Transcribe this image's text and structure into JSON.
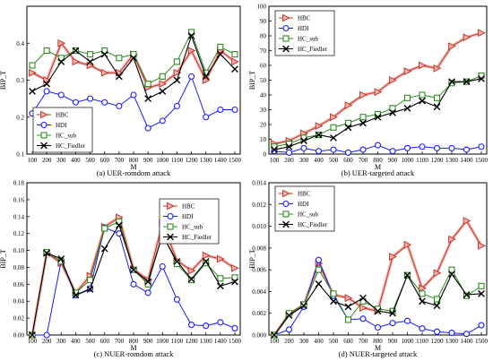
{
  "chart_data": [
    {
      "type": "line",
      "caption": "(a) UER-romdom attack",
      "xlabel": "M",
      "ylabel": "BIP_T",
      "x": [
        100,
        200,
        300,
        400,
        500,
        600,
        700,
        800,
        900,
        1000,
        1100,
        1200,
        1300,
        1400,
        1500
      ],
      "xticks": [
        "100",
        "200",
        "300",
        "400",
        "500",
        "600",
        "700",
        "800",
        "900",
        "1000",
        "1100",
        "1200",
        "1300",
        "1400",
        "1500"
      ],
      "ylim": [
        0.1,
        0.5
      ],
      "yticks": [
        0.1,
        0.2,
        0.3,
        0.4
      ],
      "ytick_labels": [
        "0.1",
        "0.2",
        "0.3",
        "0.4"
      ],
      "legend": "bottom-left",
      "series": [
        {
          "name": "HBC",
          "values": [
            0.32,
            0.3,
            0.4,
            0.35,
            0.34,
            0.32,
            0.32,
            0.37,
            0.28,
            0.29,
            0.32,
            0.38,
            0.3,
            0.38,
            0.35
          ]
        },
        {
          "name": "HDI",
          "values": [
            0.21,
            0.27,
            0.26,
            0.24,
            0.25,
            0.24,
            0.23,
            0.26,
            0.17,
            0.19,
            0.23,
            0.31,
            0.2,
            0.22,
            0.22
          ]
        },
        {
          "name": "HC_sub",
          "values": [
            0.34,
            0.38,
            0.36,
            0.38,
            0.37,
            0.38,
            0.36,
            0.37,
            0.29,
            0.31,
            0.35,
            0.43,
            0.32,
            0.39,
            0.37
          ]
        },
        {
          "name": "HC_Fiedler",
          "values": [
            0.27,
            0.29,
            0.35,
            0.38,
            0.35,
            0.37,
            0.31,
            0.36,
            0.25,
            0.27,
            0.3,
            0.42,
            0.31,
            0.37,
            0.33
          ]
        }
      ]
    },
    {
      "type": "line",
      "caption": "(b) UER-targeted attack",
      "xlabel": "M",
      "ylabel": "BIP_T",
      "x": [
        100,
        200,
        300,
        400,
        500,
        600,
        700,
        800,
        900,
        1000,
        1100,
        1200,
        1300,
        1400,
        1500
      ],
      "xticks": [
        "100",
        "200",
        "300",
        "400",
        "500",
        "600",
        "700",
        "800",
        "900",
        "1000",
        "1100",
        "1200",
        "1300",
        "1400",
        "1500"
      ],
      "ylim": [
        0,
        100
      ],
      "yticks": [
        0,
        10,
        20,
        30,
        40,
        50,
        60,
        70,
        80,
        90,
        100
      ],
      "ytick_labels": [
        "0",
        "10",
        "20",
        "30",
        "40",
        "50",
        "60",
        "70",
        "80",
        "90",
        "100"
      ],
      "legend": "top-left",
      "series": [
        {
          "name": "HBC",
          "values": [
            7,
            9,
            14,
            19,
            25,
            33,
            40,
            42,
            50,
            56,
            60,
            58,
            73,
            79,
            82
          ]
        },
        {
          "name": "HDI",
          "values": [
            2,
            1,
            4,
            2,
            3,
            1,
            3,
            6,
            2,
            4,
            5,
            4,
            4,
            3,
            5
          ]
        },
        {
          "name": "HC_sub",
          "values": [
            5,
            7,
            11,
            13,
            18,
            21,
            25,
            27,
            31,
            38,
            40,
            38,
            48,
            49,
            53
          ]
        },
        {
          "name": "HC_Fiedler",
          "values": [
            3,
            5,
            9,
            13,
            11,
            18,
            21,
            25,
            28,
            31,
            36,
            32,
            49,
            49,
            51
          ]
        }
      ]
    },
    {
      "type": "line",
      "caption": "(c) NUER-romdom attack",
      "xlabel": "M",
      "ylabel": "BIP_T",
      "x": [
        100,
        200,
        300,
        400,
        500,
        600,
        700,
        800,
        900,
        1000,
        1100,
        1200,
        1300,
        1400,
        1500
      ],
      "xticks": [
        "100",
        "200",
        "300",
        "400",
        "500",
        "600",
        "700",
        "800",
        "900",
        "1000",
        "1100",
        "1200",
        "1300",
        "1400",
        "1500"
      ],
      "ylim": [
        0,
        0.18
      ],
      "yticks": [
        0,
        0.02,
        0.04,
        0.06,
        0.08,
        0.1,
        0.12,
        0.14,
        0.16,
        0.18
      ],
      "ytick_labels": [
        "0.00",
        "0.02",
        "0.04",
        "0.06",
        "0.08",
        "0.10",
        "0.12",
        "0.14",
        "0.16",
        "0.18"
      ],
      "legend": "right",
      "series": [
        {
          "name": "HBC",
          "values": [
            0.0,
            0.097,
            0.085,
            0.05,
            0.07,
            0.128,
            0.139,
            0.078,
            0.065,
            0.132,
            0.088,
            0.076,
            0.094,
            0.09,
            0.079
          ]
        },
        {
          "name": "HDI",
          "values": [
            0.0,
            0.0,
            0.088,
            0.047,
            0.055,
            0.127,
            0.12,
            0.06,
            0.05,
            0.081,
            0.042,
            0.012,
            0.011,
            0.015,
            0.008
          ]
        },
        {
          "name": "HC_sub",
          "values": [
            0.0,
            0.098,
            0.087,
            0.05,
            0.065,
            0.126,
            0.134,
            0.077,
            0.06,
            0.12,
            0.084,
            0.065,
            0.085,
            0.067,
            0.068
          ]
        },
        {
          "name": "HC_Fiedler",
          "values": [
            0.0,
            0.097,
            0.09,
            0.047,
            0.054,
            0.102,
            0.13,
            0.077,
            0.063,
            0.118,
            0.087,
            0.066,
            0.087,
            0.058,
            0.063
          ]
        }
      ]
    },
    {
      "type": "line",
      "caption": "(d) NUER-targeted attack",
      "xlabel": "M",
      "ylabel": "BIP_T",
      "x": [
        100,
        200,
        300,
        400,
        500,
        600,
        700,
        800,
        900,
        1000,
        1100,
        1200,
        1300,
        1400,
        1500
      ],
      "xticks": [
        "100",
        "200",
        "300",
        "400",
        "500",
        "600",
        "700",
        "800",
        "900",
        "1000",
        "1100",
        "1200",
        "1300",
        "1400",
        "1500"
      ],
      "ylim": [
        0,
        0.014
      ],
      "yticks": [
        0,
        0.002,
        0.004,
        0.006,
        0.008,
        0.01,
        0.012,
        0.014
      ],
      "ytick_labels": [
        "0.000",
        "0.002",
        "0.004",
        "0.006",
        "0.008",
        "0.010",
        "0.012",
        "0.014"
      ],
      "legend": "top-left",
      "series": [
        {
          "name": "HBC",
          "values": [
            0.0,
            0.0019,
            0.0028,
            0.0066,
            0.0037,
            0.0034,
            0.0025,
            0.0022,
            0.0072,
            0.0083,
            0.0043,
            0.0057,
            0.0088,
            0.0105,
            0.0082
          ]
        },
        {
          "name": "HDI",
          "values": [
            0.0,
            0.0005,
            0.0026,
            0.0069,
            0.0036,
            0.0014,
            0.0015,
            0.0007,
            0.0011,
            0.0013,
            0.0006,
            0.0003,
            0.0002,
            0.0001,
            0.0009
          ]
        },
        {
          "name": "HC_sub",
          "values": [
            0.0,
            0.002,
            0.0028,
            0.006,
            0.0038,
            0.0014,
            0.0031,
            0.0024,
            0.0022,
            0.0055,
            0.0038,
            0.0033,
            0.006,
            0.0036,
            0.0045
          ]
        },
        {
          "name": "HC_Fiedler",
          "values": [
            0.0,
            0.0018,
            0.0027,
            0.0047,
            0.0031,
            0.0026,
            0.0034,
            0.0022,
            0.002,
            0.0055,
            0.0031,
            0.0027,
            0.0056,
            0.0037,
            0.0038
          ]
        }
      ]
    }
  ],
  "series_style": {
    "HBC": {
      "color": "#c0392b",
      "marker": "triangle-right"
    },
    "HDI": {
      "color": "#1a1aff",
      "marker": "circle"
    },
    "HC_sub": {
      "color": "#2e8b22",
      "marker": "square"
    },
    "HC_Fiedler": {
      "color": "#000000",
      "marker": "cross"
    }
  }
}
